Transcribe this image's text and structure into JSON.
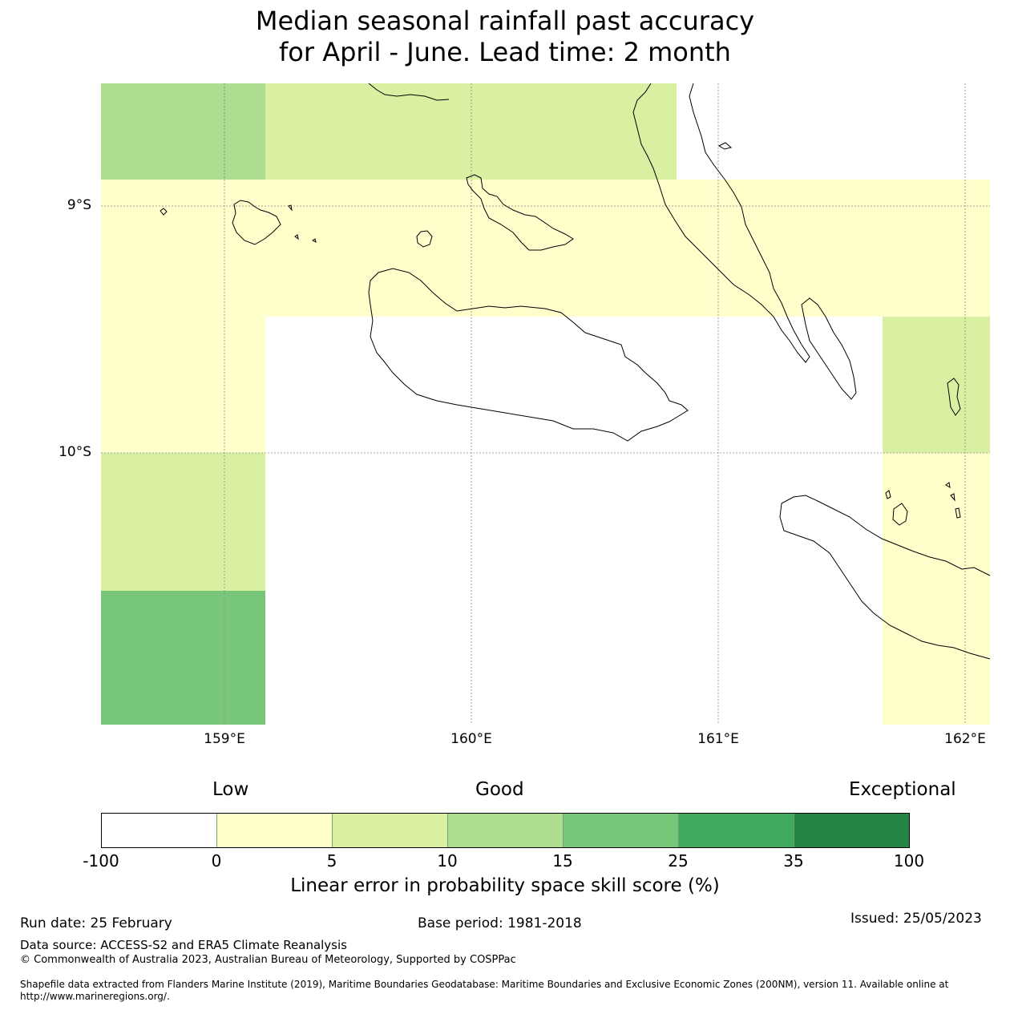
{
  "title": {
    "line1": "Median seasonal rainfall past accuracy",
    "line2": "for April - June. Lead time: 2 month"
  },
  "map": {
    "lat_labels": [
      "9°S",
      "10°S"
    ],
    "lon_labels": [
      "159°E",
      "160°E",
      "161°E",
      "162°E"
    ],
    "colors": {
      "0_5": "#ffffcc",
      "5_10": "#d9f0a3",
      "10_15": "#addd8e",
      "15_25": "#78c679",
      "25_35": "#41ab5d",
      "35_100": "#238443",
      "below_0": "#ffffff"
    }
  },
  "colorbar": {
    "categories": [
      "Low",
      "Good",
      "Exceptional"
    ],
    "ticks": [
      "-100",
      "0",
      "5",
      "10",
      "15",
      "25",
      "35",
      "100"
    ],
    "colors": [
      "#ffffff",
      "#ffffcc",
      "#d9f0a3",
      "#addd8e",
      "#78c679",
      "#41ab5d",
      "#238443"
    ],
    "label": "Linear error in probability space skill score (%)"
  },
  "footer": {
    "run_date": "Run date: 25 February",
    "base_period": "Base period: 1981-2018",
    "issued": "Issued: 25/05/2023",
    "data_source": "Data source: ACCESS-S2 and ERA5 Climate Reanalysis",
    "copyright": "© Commonwealth of Australia 2023, Australian Bureau of Meteorology, Supported by COSPPac",
    "shapefile": "Shapefile data extracted from Flanders Marine Institute (2019), Maritime Boundaries Geodatabase: Maritime Boundaries and Exclusive Economic Zones (200NM), version 11. Available online at http://www.marineregions.org/."
  }
}
